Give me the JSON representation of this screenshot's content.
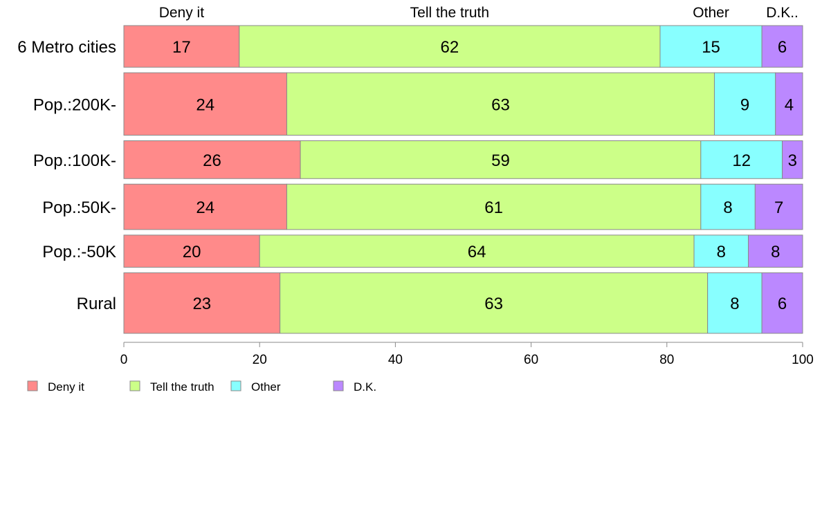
{
  "chart_data": {
    "type": "bar",
    "orientation": "horizontal",
    "stacked": true,
    "title": "",
    "xlabel": "",
    "ylabel": "",
    "xlim": [
      0,
      100
    ],
    "xticks": [
      0,
      20,
      40,
      60,
      80,
      100
    ],
    "categories": [
      "6 Metro cities",
      "Pop.:200K-",
      "Pop.:100K-",
      "Pop.:50K-",
      "Pop.:-50K",
      "Rural"
    ],
    "bar_weights": [
      0.22,
      0.33,
      0.2,
      0.24,
      0.17,
      0.32
    ],
    "series": [
      {
        "name": "Deny it",
        "color": "#FF8A8A",
        "values": [
          17,
          24,
          26,
          24,
          20,
          23
        ]
      },
      {
        "name": "Tell the truth",
        "color": "#CCFF88",
        "values": [
          62,
          63,
          59,
          61,
          64,
          63
        ]
      },
      {
        "name": "Other",
        "color": "#88FFFF",
        "values": [
          15,
          9,
          12,
          8,
          8,
          8
        ]
      },
      {
        "name": "D.K.",
        "color": "#BB88FF",
        "values": [
          6,
          4,
          3,
          7,
          8,
          6
        ]
      }
    ],
    "top_labels": [
      "Deny it",
      "Tell the truth",
      "Other",
      "D.K.."
    ],
    "legend": {
      "placement": "bottom-left",
      "entries": [
        "Deny it",
        "Tell the truth",
        "Other",
        "D.K."
      ]
    },
    "grid": false
  }
}
